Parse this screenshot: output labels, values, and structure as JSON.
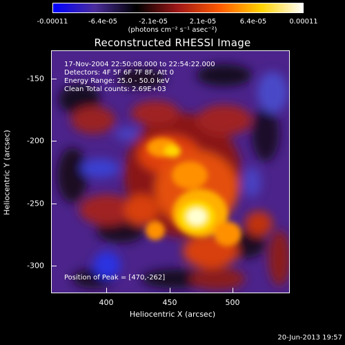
{
  "colorbar": {
    "tick_labels": [
      "-0.00011",
      "-6.4e-05",
      "-2.1e-05",
      "2.1e-05",
      "6.4e-05",
      "0.00011"
    ],
    "units_label": "(photons cm⁻² s⁻¹ asec⁻²)",
    "colors": [
      "#0000ff",
      "#4b2d9c",
      "#000000",
      "#a01818",
      "#ff5a00",
      "#ffd200",
      "#ffffff"
    ]
  },
  "title": "Reconstructed RHESSI Image",
  "info": {
    "time_range": "17-Nov-2004 22:50:08.000 to 22:54:22.000",
    "detectors": "Detectors: 4F 5F 6F 7F 8F, Att 0",
    "energy": "Energy Range: 25.0 - 50.0 keV",
    "method": "Clean    Total counts: 2.69E+03",
    "peak": "Position of Peak = [470,-262]"
  },
  "axes": {
    "xlabel": "Heliocentric X (arcsec)",
    "ylabel": "Heliocentric Y (arcsec)",
    "x_ticks": [
      "400",
      "450",
      "500"
    ],
    "y_ticks": [
      "-150",
      "-200",
      "-250",
      "-300"
    ],
    "xlim": [
      356,
      546
    ],
    "ylim": [
      -322,
      -129
    ]
  },
  "footer": {
    "date": "20-Jun-2013 19:57"
  }
}
